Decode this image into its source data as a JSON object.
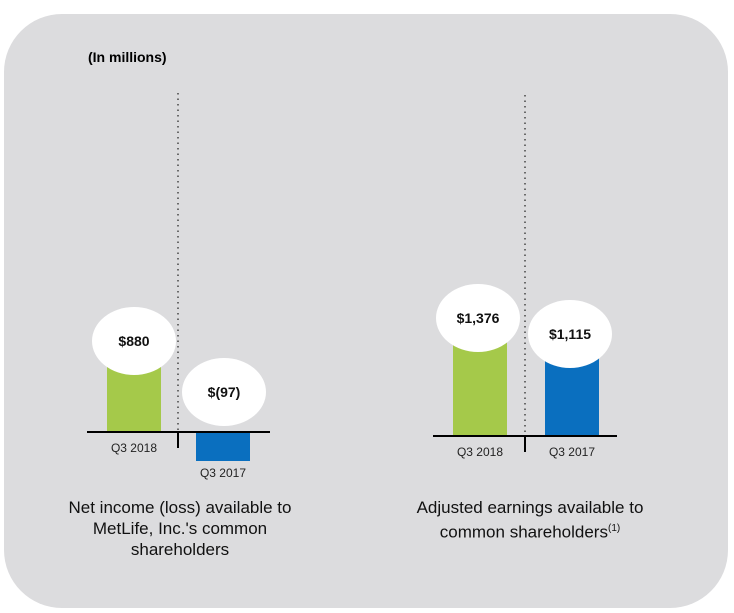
{
  "units_note": "(In millions)",
  "colors": {
    "q3_2018": "#a5c94a",
    "q3_2017": "#0a6fbf",
    "background": "#dcdcde"
  },
  "chart_data": [
    {
      "type": "bar",
      "title": "Net income (loss) available to MetLife, Inc.'s common shareholders",
      "categories": [
        "Q3 2018",
        "Q3 2017"
      ],
      "values": [
        880,
        -97
      ],
      "data_labels": [
        "$880",
        "$(97)"
      ]
    },
    {
      "type": "bar",
      "title": "Adjusted earnings available to common shareholders",
      "title_footnote": "(1)",
      "categories": [
        "Q3 2018",
        "Q3 2017"
      ],
      "values": [
        1376,
        1115
      ],
      "data_labels": [
        "$1,376",
        "$1,115"
      ]
    }
  ]
}
